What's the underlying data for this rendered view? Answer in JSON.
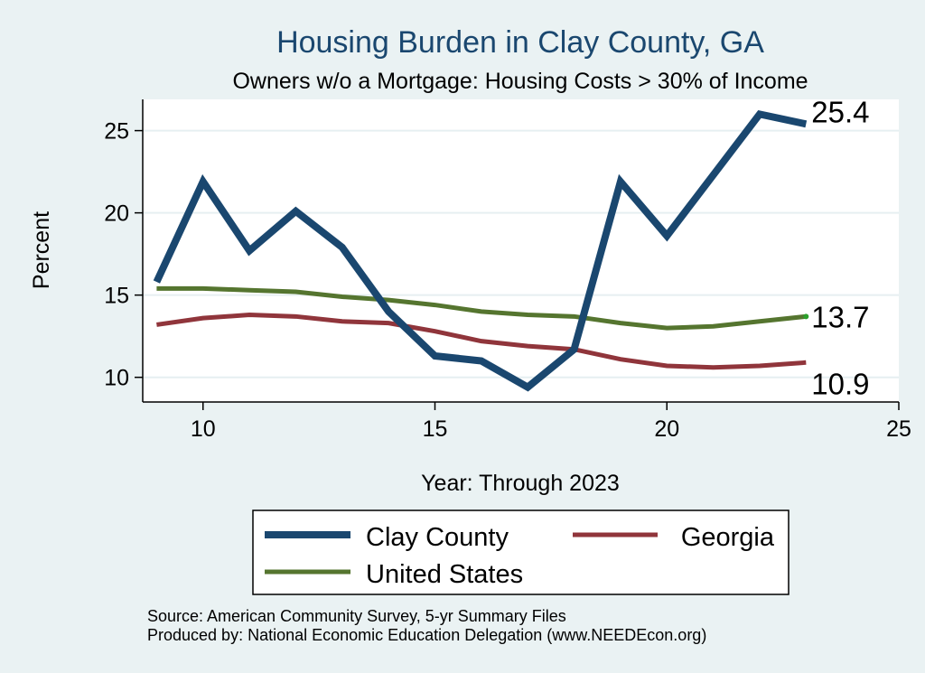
{
  "chart_data": {
    "type": "line",
    "title": "Housing Burden in Clay County, GA",
    "subtitle": "Owners w/o a Mortgage: Housing Costs > 30% of Income",
    "xlabel": "Year: Through 2023",
    "ylabel": "Percent",
    "x": [
      9,
      10,
      11,
      12,
      13,
      14,
      15,
      16,
      17,
      18,
      19,
      20,
      21,
      22,
      23
    ],
    "xlim": [
      8.7,
      25
    ],
    "ylim": [
      8.5,
      26.9
    ],
    "xticks": [
      10,
      15,
      20,
      25
    ],
    "yticks": [
      10,
      15,
      20,
      25
    ],
    "grid": true,
    "series": [
      {
        "name": "Clay County",
        "color": "#1a476f",
        "values": [
          15.8,
          21.9,
          17.7,
          20.1,
          17.9,
          14.0,
          11.3,
          11.0,
          9.4,
          11.7,
          21.9,
          18.6,
          22.3,
          26.0,
          25.4
        ],
        "end_label": "25.4"
      },
      {
        "name": "Georgia",
        "color": "#90353b",
        "values": [
          13.2,
          13.6,
          13.8,
          13.7,
          13.4,
          13.3,
          12.8,
          12.2,
          11.9,
          11.7,
          11.1,
          10.7,
          10.6,
          10.7,
          10.9
        ],
        "end_label": "10.9"
      },
      {
        "name": "United States",
        "color": "#55752f",
        "values": [
          15.4,
          15.4,
          15.3,
          15.2,
          14.9,
          14.7,
          14.4,
          14.0,
          13.8,
          13.7,
          13.3,
          13.0,
          13.1,
          13.4,
          13.7
        ],
        "end_label": "13.7"
      }
    ],
    "legend": [
      {
        "label": "Clay County",
        "color": "#1a476f"
      },
      {
        "label": "Georgia",
        "color": "#90353b"
      },
      {
        "label": "United States",
        "color": "#55752f"
      }
    ],
    "legend_position": "bottom"
  },
  "notes": {
    "source": "Source: American Community Survey, 5-yr Summary Files",
    "produced": "Produced by: National Economic Education Delegation (www.NEEDEcon.org)"
  },
  "colors": {
    "background": "#eaf2f3",
    "plot_background": "#ffffff",
    "grid": "#e6eff1"
  }
}
